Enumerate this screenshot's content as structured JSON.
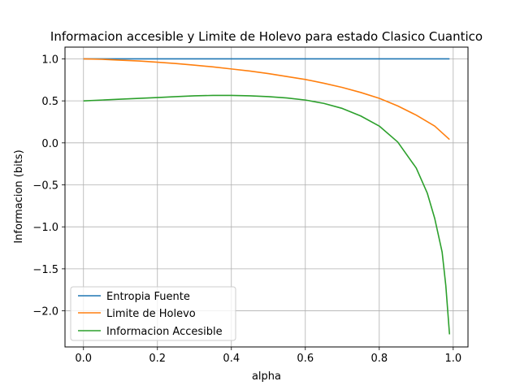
{
  "chart_data": {
    "type": "line",
    "title": "Informacion accesible y Limite de Holevo para estado Clasico Cuantico",
    "xlabel": "alpha",
    "ylabel": "Informacion (bits)",
    "xlim": [
      -0.05,
      1.04
    ],
    "ylim": [
      -2.43,
      1.14
    ],
    "xticks": [
      0.0,
      0.2,
      0.4,
      0.6,
      0.8,
      1.0
    ],
    "xtick_labels": [
      "0.0",
      "0.2",
      "0.4",
      "0.6",
      "0.8",
      "1.0"
    ],
    "yticks": [
      1.0,
      0.5,
      0.0,
      -0.5,
      -1.0,
      -1.5,
      -2.0
    ],
    "ytick_labels": [
      "1.0",
      "0.5",
      "0.0",
      "−0.5",
      "−1.0",
      "−1.5",
      "−2.0"
    ],
    "grid": true,
    "legend_position": "lower-left",
    "series": [
      {
        "name": "Entropia Fuente",
        "color": "#1f77b4",
        "x": [
          0.0,
          0.99
        ],
        "y": [
          1.0,
          1.0
        ]
      },
      {
        "name": "Limite de Holevo",
        "color": "#ff7f0e",
        "x": [
          0.0,
          0.05,
          0.1,
          0.15,
          0.2,
          0.25,
          0.3,
          0.35,
          0.4,
          0.45,
          0.5,
          0.55,
          0.6,
          0.65,
          0.7,
          0.75,
          0.8,
          0.85,
          0.9,
          0.95,
          0.99
        ],
        "y": [
          1.0,
          0.995,
          0.985,
          0.975,
          0.96,
          0.945,
          0.925,
          0.905,
          0.88,
          0.855,
          0.825,
          0.79,
          0.755,
          0.71,
          0.66,
          0.6,
          0.53,
          0.44,
          0.33,
          0.2,
          0.04
        ]
      },
      {
        "name": "Informacion Accesible",
        "color": "#2ca02c",
        "x": [
          0.0,
          0.05,
          0.1,
          0.15,
          0.2,
          0.25,
          0.3,
          0.35,
          0.4,
          0.45,
          0.5,
          0.55,
          0.6,
          0.65,
          0.7,
          0.75,
          0.8,
          0.85,
          0.9,
          0.93,
          0.95,
          0.97,
          0.98,
          0.99
        ],
        "y": [
          0.5,
          0.51,
          0.52,
          0.53,
          0.54,
          0.55,
          0.56,
          0.565,
          0.565,
          0.56,
          0.55,
          0.535,
          0.51,
          0.47,
          0.41,
          0.32,
          0.2,
          0.01,
          -0.3,
          -0.6,
          -0.9,
          -1.3,
          -1.7,
          -2.28
        ]
      }
    ]
  }
}
